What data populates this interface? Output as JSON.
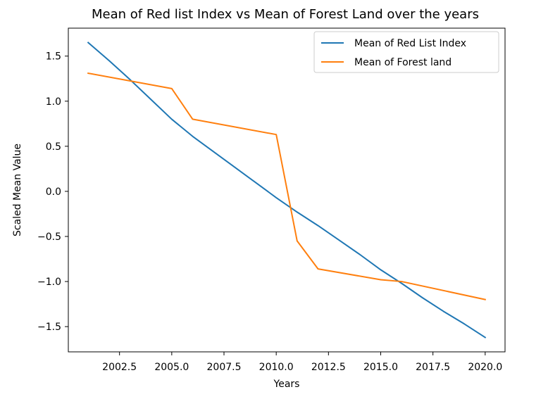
{
  "chart_data": {
    "type": "line",
    "title": "Mean of Red list Index vs Mean of Forest Land over the years",
    "xlabel": "Years",
    "ylabel": "Scaled Mean Value",
    "xlim": [
      2000.05,
      2020.95
    ],
    "ylim": [
      -1.78,
      1.81
    ],
    "x_ticks": [
      2002.5,
      2005.0,
      2007.5,
      2010.0,
      2012.5,
      2015.0,
      2017.5,
      2020.0
    ],
    "x_tick_labels": [
      "2002.5",
      "2005.0",
      "2007.5",
      "2010.0",
      "2012.5",
      "2015.0",
      "2017.5",
      "2020.0"
    ],
    "y_ticks": [
      -1.5,
      -1.0,
      -0.5,
      0.0,
      0.5,
      1.0,
      1.5
    ],
    "y_tick_labels": [
      "−1.5",
      "−1.0",
      "−0.5",
      "0.0",
      "0.5",
      "1.0",
      "1.5"
    ],
    "grid": false,
    "legend_position": "top-right",
    "series": [
      {
        "name": "Mean of Red List Index",
        "color": "#1f77b4",
        "x": [
          2001,
          2002,
          2003,
          2004,
          2005,
          2006,
          2007,
          2008,
          2009,
          2010,
          2011,
          2012,
          2013,
          2014,
          2015,
          2016,
          2017,
          2018,
          2019,
          2020
        ],
        "y": [
          1.65,
          1.45,
          1.24,
          1.02,
          0.8,
          0.61,
          0.44,
          0.27,
          0.1,
          -0.07,
          -0.23,
          -0.38,
          -0.54,
          -0.7,
          -0.87,
          -1.02,
          -1.18,
          -1.33,
          -1.47,
          -1.62
        ]
      },
      {
        "name": "Mean of Forest land",
        "color": "#ff7f0e",
        "x": [
          2001,
          2005,
          2006,
          2010,
          2011,
          2012,
          2015,
          2016,
          2020
        ],
        "y": [
          1.31,
          1.14,
          0.8,
          0.63,
          -0.55,
          -0.86,
          -0.98,
          -1.0,
          -1.2
        ]
      }
    ]
  }
}
